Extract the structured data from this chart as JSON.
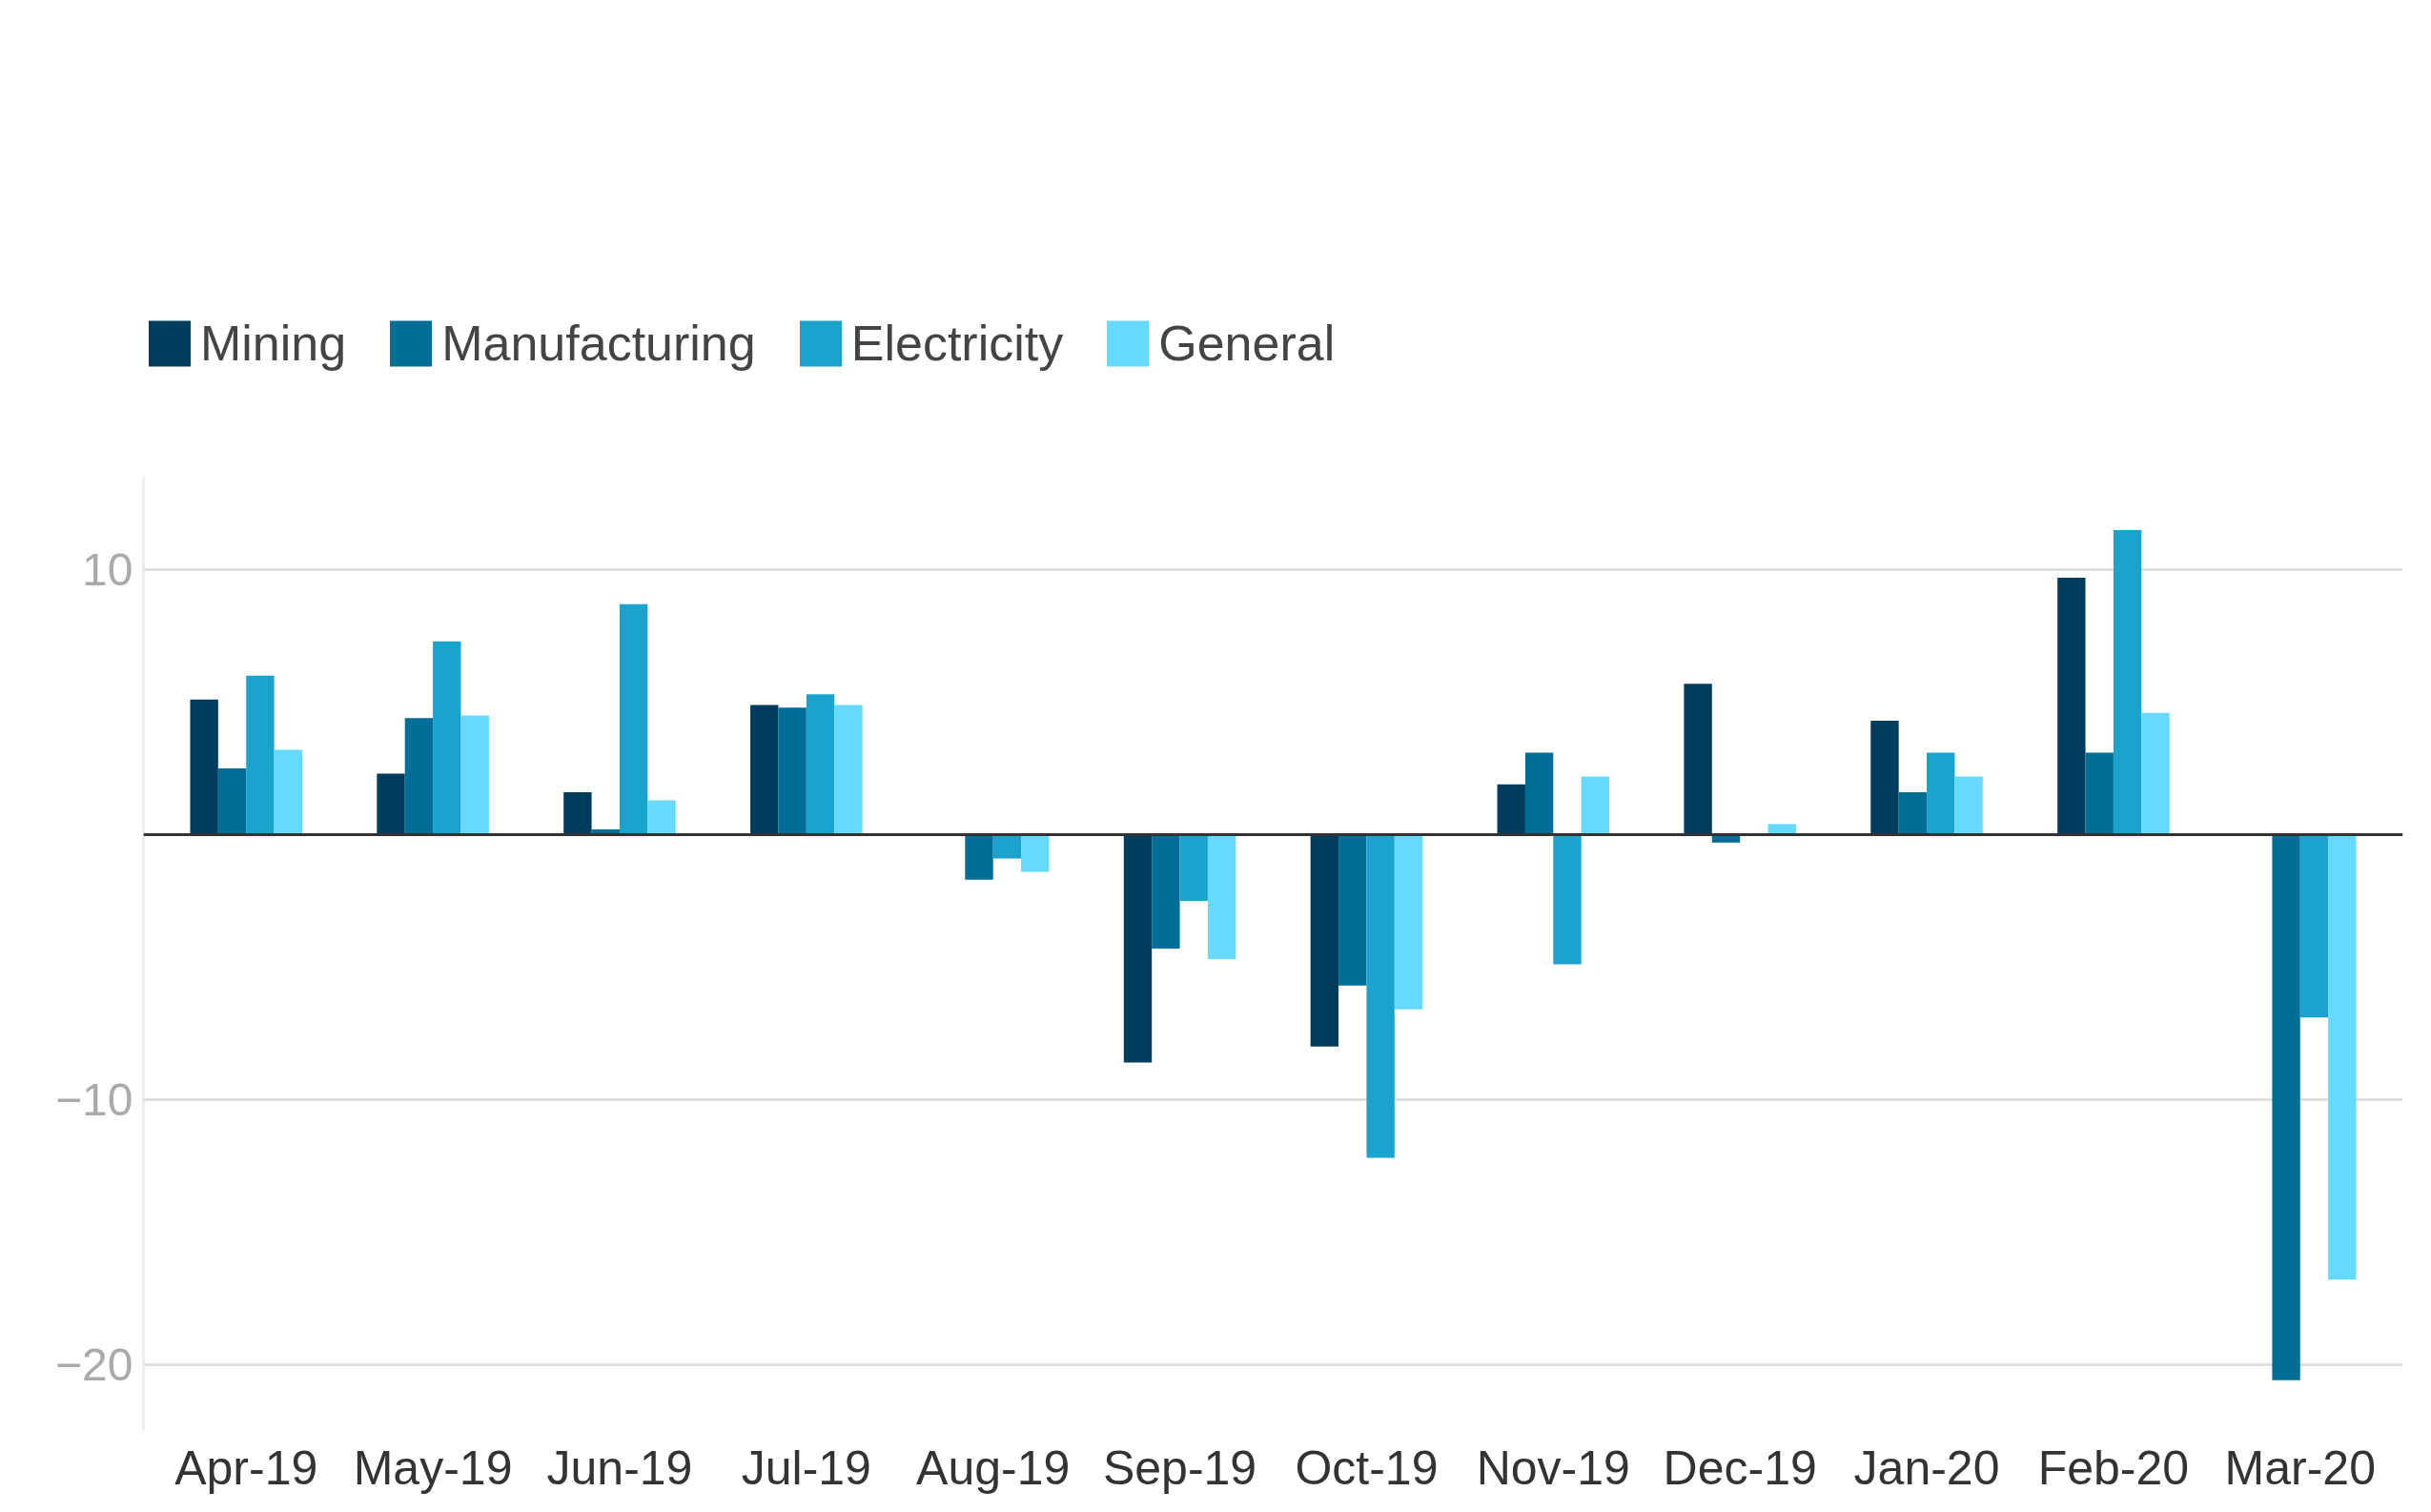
{
  "chart_data": {
    "type": "bar",
    "categories": [
      "Apr-19",
      "May-19",
      "Jun-19",
      "Jul-19",
      "Aug-19",
      "Sep-19",
      "Oct-19",
      "Nov-19",
      "Dec-19",
      "Jan-20",
      "Feb-20",
      "Mar-20"
    ],
    "series": [
      {
        "name": "Mining",
        "color": "#003d5c",
        "values": [
          5.1,
          2.3,
          1.6,
          4.9,
          null,
          -8.6,
          -8.0,
          1.9,
          5.7,
          4.3,
          9.7,
          null
        ]
      },
      {
        "name": "Manufacturing",
        "color": "#006e96",
        "values": [
          2.5,
          4.4,
          0.2,
          4.8,
          -1.7,
          -4.3,
          -5.7,
          3.1,
          -0.3,
          1.6,
          3.1,
          -20.6
        ]
      },
      {
        "name": "Electricity",
        "color": "#1aa3cc",
        "values": [
          6.0,
          7.3,
          8.7,
          5.3,
          -0.9,
          -2.5,
          -12.2,
          -4.9,
          null,
          3.1,
          11.5,
          -6.9
        ]
      },
      {
        "name": "General",
        "color": "#66d9ff",
        "values": [
          3.2,
          4.5,
          1.3,
          4.9,
          -1.4,
          -4.7,
          -6.6,
          2.2,
          0.4,
          2.2,
          4.6,
          -16.8
        ]
      }
    ],
    "ylim": [
      -22.5,
      13.5
    ],
    "yticks": [
      -20,
      -10,
      10
    ],
    "ref_lines": [
      {
        "axis": "y",
        "value": 0,
        "color": "#333333"
      }
    ],
    "grid": "y",
    "legend": "top left"
  }
}
